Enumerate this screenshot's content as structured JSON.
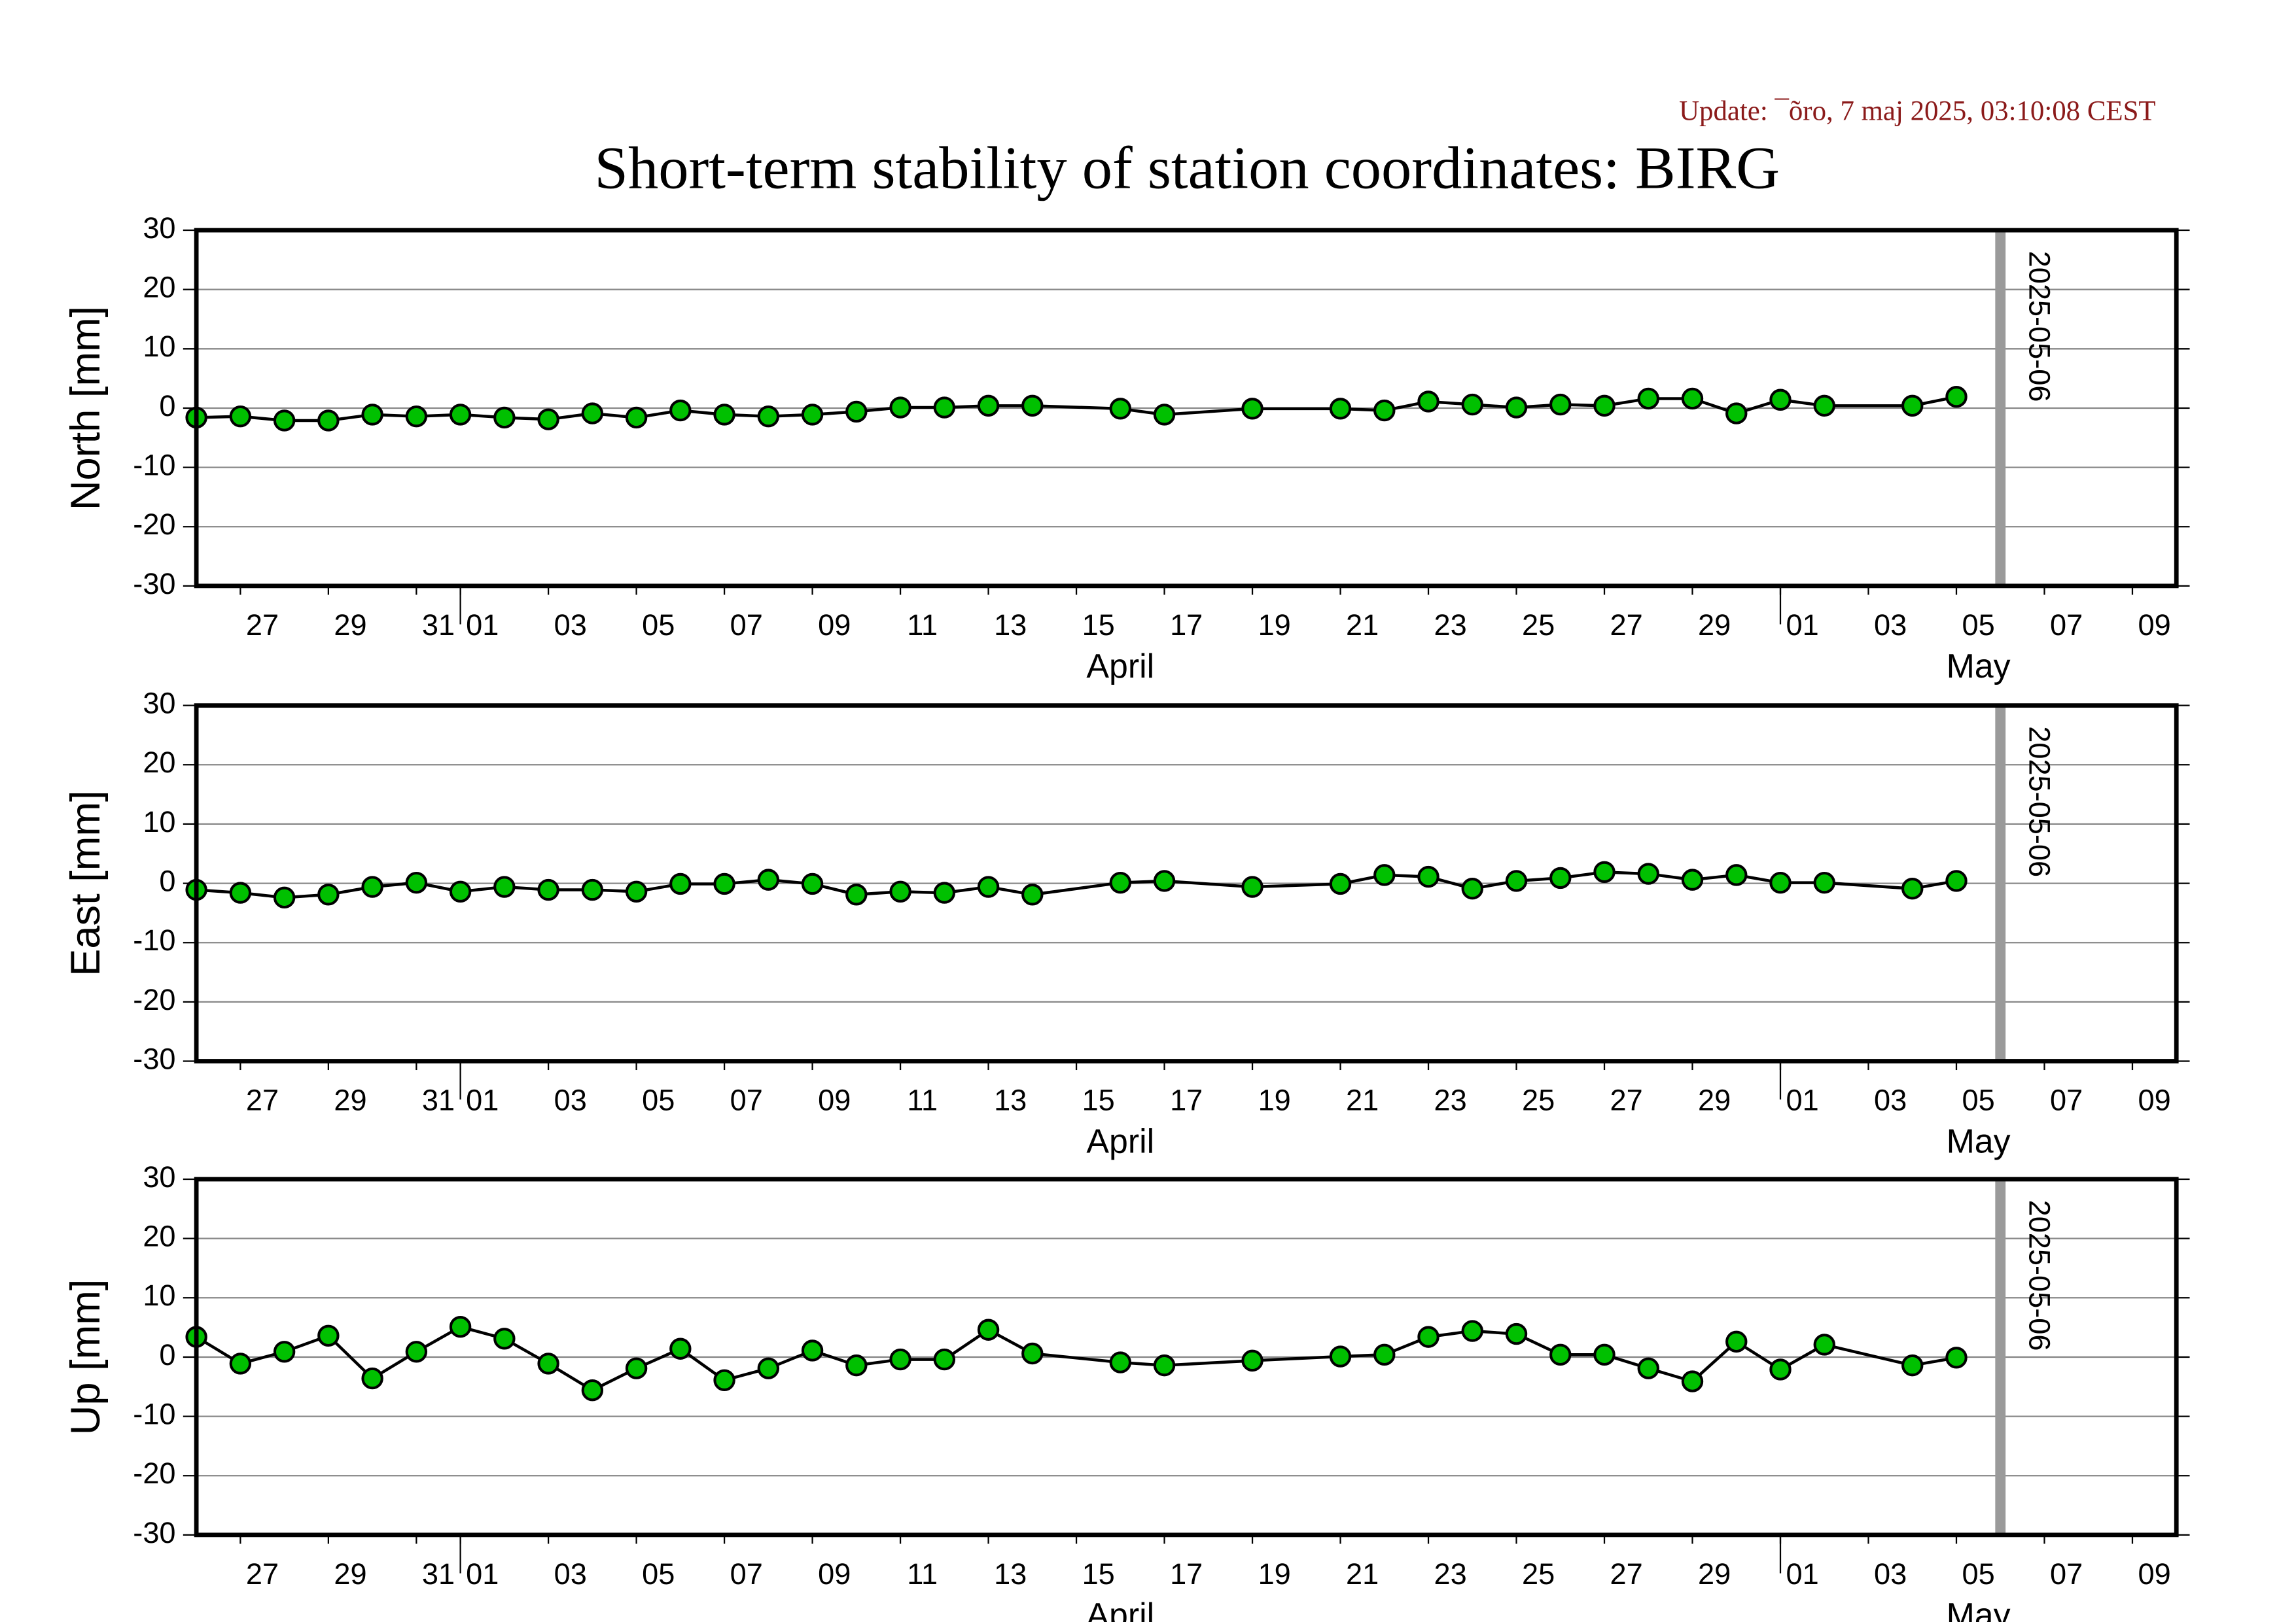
{
  "title": "Short-term stability of station coordinates: BIRG",
  "update": "Update: ¯õro, 7 maj 2025, 03:10:08 CEST",
  "chart_data": [
    {
      "type": "line",
      "y_label": "North [mm]",
      "x": [
        "2025-03-26",
        "2025-03-27",
        "2025-03-28",
        "2025-03-29",
        "2025-03-30",
        "2025-03-31",
        "2025-04-01",
        "2025-04-02",
        "2025-04-03",
        "2025-04-04",
        "2025-04-05",
        "2025-04-06",
        "2025-04-07",
        "2025-04-08",
        "2025-04-09",
        "2025-04-10",
        "2025-04-11",
        "2025-04-12",
        "2025-04-13",
        "2025-04-14",
        "2025-04-16",
        "2025-04-17",
        "2025-04-19",
        "2025-04-21",
        "2025-04-22",
        "2025-04-23",
        "2025-04-24",
        "2025-04-25",
        "2025-04-26",
        "2025-04-27",
        "2025-04-28",
        "2025-04-29",
        "2025-04-30",
        "2025-05-01",
        "2025-05-02",
        "2025-05-04",
        "2025-05-05"
      ],
      "values": [
        -1.6,
        -1.4,
        -2.1,
        -2.1,
        -1.1,
        -1.4,
        -1.1,
        -1.6,
        -1.9,
        -0.9,
        -1.6,
        -0.4,
        -1.1,
        -1.4,
        -1.1,
        -0.6,
        0.1,
        0.1,
        0.4,
        0.4,
        -0.1,
        -1.1,
        -0.1,
        -0.1,
        -0.4,
        1.1,
        0.6,
        0.1,
        0.6,
        0.4,
        1.6,
        1.6,
        -0.9,
        1.4,
        0.4,
        0.4,
        1.9
      ],
      "color": "#00c000",
      "line_color": "#000000",
      "xlim": [
        "2025-03-26",
        "2025-05-10"
      ],
      "ylim": [
        -30,
        30
      ],
      "yticks": [
        -30,
        -20,
        -10,
        0,
        10,
        20,
        30
      ],
      "grid": true,
      "xticks": [
        {
          "value": "2025-03-27",
          "label": "27"
        },
        {
          "value": "2025-03-29",
          "label": "29"
        },
        {
          "value": "2025-03-31",
          "label": "31"
        },
        {
          "value": "2025-04-01",
          "label": "01"
        },
        {
          "value": "2025-04-03",
          "label": "03"
        },
        {
          "value": "2025-04-05",
          "label": "05"
        },
        {
          "value": "2025-04-07",
          "label": "07"
        },
        {
          "value": "2025-04-09",
          "label": "09"
        },
        {
          "value": "2025-04-11",
          "label": "11"
        },
        {
          "value": "2025-04-13",
          "label": "13"
        },
        {
          "value": "2025-04-15",
          "label": "15"
        },
        {
          "value": "2025-04-17",
          "label": "17"
        },
        {
          "value": "2025-04-19",
          "label": "19"
        },
        {
          "value": "2025-04-21",
          "label": "21"
        },
        {
          "value": "2025-04-23",
          "label": "23"
        },
        {
          "value": "2025-04-25",
          "label": "25"
        },
        {
          "value": "2025-04-27",
          "label": "27"
        },
        {
          "value": "2025-04-29",
          "label": "29"
        },
        {
          "value": "2025-05-01",
          "label": "01"
        },
        {
          "value": "2025-05-03",
          "label": "03"
        },
        {
          "value": "2025-05-05",
          "label": "05"
        },
        {
          "value": "2025-05-07",
          "label": "07"
        },
        {
          "value": "2025-05-09",
          "label": "09"
        }
      ],
      "months": [
        {
          "value": "2025-04-01",
          "label": "April"
        },
        {
          "value": "2025-05-01",
          "label": "May"
        }
      ],
      "vline": "2025-05-06"
    },
    {
      "type": "line",
      "y_label": "East [mm]",
      "x": [
        "2025-03-26",
        "2025-03-27",
        "2025-03-28",
        "2025-03-29",
        "2025-03-30",
        "2025-03-31",
        "2025-04-01",
        "2025-04-02",
        "2025-04-03",
        "2025-04-04",
        "2025-04-05",
        "2025-04-06",
        "2025-04-07",
        "2025-04-08",
        "2025-04-09",
        "2025-04-10",
        "2025-04-11",
        "2025-04-12",
        "2025-04-13",
        "2025-04-14",
        "2025-04-16",
        "2025-04-17",
        "2025-04-19",
        "2025-04-21",
        "2025-04-22",
        "2025-04-23",
        "2025-04-24",
        "2025-04-25",
        "2025-04-26",
        "2025-04-27",
        "2025-04-28",
        "2025-04-29",
        "2025-04-30",
        "2025-05-01",
        "2025-05-02",
        "2025-05-04",
        "2025-05-05"
      ],
      "values": [
        -1.1,
        -1.6,
        -2.4,
        -1.9,
        -0.6,
        0.1,
        -1.4,
        -0.6,
        -1.1,
        -1.1,
        -1.4,
        -0.1,
        -0.1,
        0.6,
        -0.1,
        -1.9,
        -1.4,
        -1.6,
        -0.6,
        -1.9,
        0.1,
        0.4,
        -0.6,
        -0.1,
        1.4,
        1.1,
        -0.9,
        0.4,
        0.9,
        1.9,
        1.6,
        0.6,
        1.4,
        0.1,
        0.1,
        -0.9,
        0.4
      ],
      "color": "#00c000",
      "line_color": "#000000",
      "xlim": [
        "2025-03-26",
        "2025-05-10"
      ],
      "ylim": [
        -30,
        30
      ],
      "yticks": [
        -30,
        -20,
        -10,
        0,
        10,
        20,
        30
      ],
      "grid": true,
      "xticks": [
        {
          "value": "2025-03-27",
          "label": "27"
        },
        {
          "value": "2025-03-29",
          "label": "29"
        },
        {
          "value": "2025-03-31",
          "label": "31"
        },
        {
          "value": "2025-04-01",
          "label": "01"
        },
        {
          "value": "2025-04-03",
          "label": "03"
        },
        {
          "value": "2025-04-05",
          "label": "05"
        },
        {
          "value": "2025-04-07",
          "label": "07"
        },
        {
          "value": "2025-04-09",
          "label": "09"
        },
        {
          "value": "2025-04-11",
          "label": "11"
        },
        {
          "value": "2025-04-13",
          "label": "13"
        },
        {
          "value": "2025-04-15",
          "label": "15"
        },
        {
          "value": "2025-04-17",
          "label": "17"
        },
        {
          "value": "2025-04-19",
          "label": "19"
        },
        {
          "value": "2025-04-21",
          "label": "21"
        },
        {
          "value": "2025-04-23",
          "label": "23"
        },
        {
          "value": "2025-04-25",
          "label": "25"
        },
        {
          "value": "2025-04-27",
          "label": "27"
        },
        {
          "value": "2025-04-29",
          "label": "29"
        },
        {
          "value": "2025-05-01",
          "label": "01"
        },
        {
          "value": "2025-05-03",
          "label": "03"
        },
        {
          "value": "2025-05-05",
          "label": "05"
        },
        {
          "value": "2025-05-07",
          "label": "07"
        },
        {
          "value": "2025-05-09",
          "label": "09"
        }
      ],
      "months": [
        {
          "value": "2025-04-01",
          "label": "April"
        },
        {
          "value": "2025-05-01",
          "label": "May"
        }
      ],
      "vline": "2025-05-06"
    },
    {
      "type": "line",
      "y_label": "Up [mm]",
      "x": [
        "2025-03-26",
        "2025-03-27",
        "2025-03-28",
        "2025-03-29",
        "2025-03-30",
        "2025-03-31",
        "2025-04-01",
        "2025-04-02",
        "2025-04-03",
        "2025-04-04",
        "2025-04-05",
        "2025-04-06",
        "2025-04-07",
        "2025-04-08",
        "2025-04-09",
        "2025-04-10",
        "2025-04-11",
        "2025-04-12",
        "2025-04-13",
        "2025-04-14",
        "2025-04-16",
        "2025-04-17",
        "2025-04-19",
        "2025-04-21",
        "2025-04-22",
        "2025-04-23",
        "2025-04-24",
        "2025-04-25",
        "2025-04-26",
        "2025-04-27",
        "2025-04-28",
        "2025-04-29",
        "2025-04-30",
        "2025-05-01",
        "2025-05-02",
        "2025-05-04",
        "2025-05-05"
      ],
      "values": [
        3.4,
        -1.1,
        0.9,
        3.6,
        -3.6,
        0.9,
        5.1,
        3.1,
        -1.1,
        -5.6,
        -1.9,
        1.4,
        -3.9,
        -1.9,
        1.1,
        -1.4,
        -0.4,
        -0.4,
        4.6,
        0.6,
        -0.9,
        -1.4,
        -0.6,
        0.1,
        0.4,
        3.4,
        4.4,
        3.9,
        0.4,
        0.4,
        -1.9,
        -4.1,
        2.6,
        -2.1,
        2.1,
        -1.4,
        -0.1
      ],
      "color": "#00c000",
      "line_color": "#000000",
      "xlim": [
        "2025-03-26",
        "2025-05-10"
      ],
      "ylim": [
        -30,
        30
      ],
      "yticks": [
        -30,
        -20,
        -10,
        0,
        10,
        20,
        30
      ],
      "grid": true,
      "xticks": [
        {
          "value": "2025-03-27",
          "label": "27"
        },
        {
          "value": "2025-03-29",
          "label": "29"
        },
        {
          "value": "2025-03-31",
          "label": "31"
        },
        {
          "value": "2025-04-01",
          "label": "01"
        },
        {
          "value": "2025-04-03",
          "label": "03"
        },
        {
          "value": "2025-04-05",
          "label": "05"
        },
        {
          "value": "2025-04-07",
          "label": "07"
        },
        {
          "value": "2025-04-09",
          "label": "09"
        },
        {
          "value": "2025-04-11",
          "label": "11"
        },
        {
          "value": "2025-04-13",
          "label": "13"
        },
        {
          "value": "2025-04-15",
          "label": "15"
        },
        {
          "value": "2025-04-17",
          "label": "17"
        },
        {
          "value": "2025-04-19",
          "label": "19"
        },
        {
          "value": "2025-04-21",
          "label": "21"
        },
        {
          "value": "2025-04-23",
          "label": "23"
        },
        {
          "value": "2025-04-25",
          "label": "25"
        },
        {
          "value": "2025-04-27",
          "label": "27"
        },
        {
          "value": "2025-04-29",
          "label": "29"
        },
        {
          "value": "2025-05-01",
          "label": "01"
        },
        {
          "value": "2025-05-03",
          "label": "03"
        },
        {
          "value": "2025-05-05",
          "label": "05"
        },
        {
          "value": "2025-05-07",
          "label": "07"
        },
        {
          "value": "2025-05-09",
          "label": "09"
        }
      ],
      "months": [
        {
          "value": "2025-04-01",
          "label": "April"
        },
        {
          "value": "2025-05-01",
          "label": "May"
        }
      ],
      "vline": "2025-05-06"
    }
  ]
}
